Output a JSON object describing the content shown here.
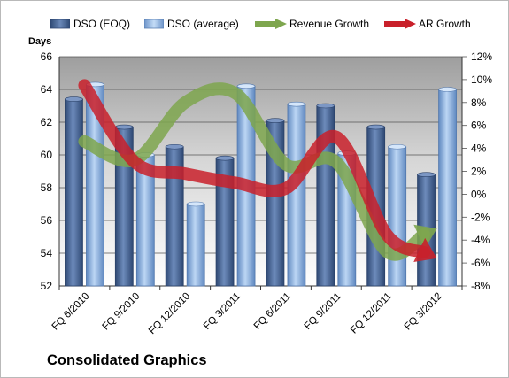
{
  "chart_data": {
    "type": "bar",
    "title": "",
    "categories": [
      "FQ 6/2010",
      "FQ 9/2010",
      "FQ 12/2010",
      "FQ 3/2011",
      "FQ 6/2011",
      "FQ 9/2011",
      "FQ 12/2011",
      "FQ 3/2012"
    ],
    "ylabel": "Days",
    "ylim": [
      52,
      66
    ],
    "yticks": [
      52,
      54,
      56,
      58,
      60,
      62,
      64,
      66
    ],
    "y2lim": [
      -8,
      12
    ],
    "y2ticks": [
      "-8%",
      "-6%",
      "-4%",
      "-2%",
      "0%",
      "2%",
      "4%",
      "6%",
      "8%",
      "10%",
      "12%"
    ],
    "y2_values": [
      -8,
      -6,
      -4,
      -2,
      0,
      2,
      4,
      6,
      8,
      10,
      12
    ],
    "grid": true,
    "legend_position": "top",
    "series": [
      {
        "name": "DSO (EOQ)",
        "axis": "left",
        "render": "bar",
        "color": "#4f6d99",
        "values": [
          63.4,
          61.7,
          60.5,
          59.8,
          62.1,
          63.0,
          61.7,
          58.8
        ]
      },
      {
        "name": "DSO (average)",
        "axis": "left",
        "render": "bar",
        "color": "#8cb0df",
        "values": [
          64.3,
          60.0,
          57.0,
          64.2,
          63.1,
          60.1,
          60.5,
          64.0
        ]
      },
      {
        "name": "Revenue Growth",
        "axis": "right",
        "render": "arrow",
        "color": "#7ea64e",
        "values": [
          4.6,
          3.0,
          8.0,
          8.8,
          2.6,
          2.8,
          -5.0,
          -3.0
        ]
      },
      {
        "name": "AR Growth",
        "axis": "right",
        "render": "arrow",
        "color": "#c9202a",
        "values": [
          9.5,
          2.8,
          1.8,
          1.0,
          0.5,
          5.0,
          -3.5,
          -5.6
        ]
      }
    ]
  },
  "footer": {
    "company": "Consolidated Graphics"
  }
}
